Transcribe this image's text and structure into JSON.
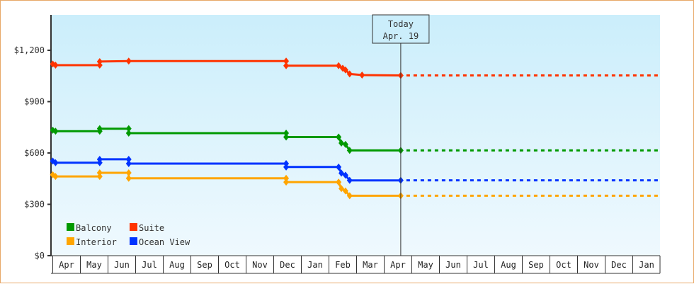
{
  "chart_data": {
    "type": "line",
    "title": "",
    "xlabel": "",
    "ylabel": "",
    "ylim": [
      0,
      1350
    ],
    "y_ticks": [
      "$0",
      "$300",
      "$600",
      "$900",
      "$1,200"
    ],
    "y_tick_values": [
      0,
      300,
      600,
      900,
      1200
    ],
    "x_ticks": [
      "Apr",
      "May",
      "Jun",
      "Jul",
      "Aug",
      "Sep",
      "Oct",
      "Nov",
      "Dec",
      "Jan",
      "Feb",
      "Mar",
      "Apr",
      "May",
      "Jun",
      "Jul",
      "Aug",
      "Sep",
      "Oct",
      "Nov",
      "Dec",
      "Jan"
    ],
    "grid": false,
    "legend_position": "lower-left inside",
    "today_marker": {
      "label_line1": "Today",
      "label_line2": "Apr. 19",
      "month_index": 12.6
    },
    "series": [
      {
        "name": "Suite",
        "color": "#ff3300",
        "points": [
          [
            0.0,
            1120
          ],
          [
            0.1,
            1113
          ],
          [
            1.7,
            1113
          ],
          [
            1.7,
            1134
          ],
          [
            2.75,
            1137
          ],
          [
            8.45,
            1137
          ],
          [
            8.45,
            1110
          ],
          [
            10.35,
            1110
          ],
          [
            10.5,
            1095
          ],
          [
            10.6,
            1085
          ],
          [
            10.75,
            1062
          ],
          [
            11.2,
            1055
          ],
          [
            12.6,
            1053
          ]
        ],
        "projection": 1053
      },
      {
        "name": "Balcony",
        "color": "#009900",
        "points": [
          [
            0.0,
            733
          ],
          [
            0.1,
            727
          ],
          [
            1.7,
            727
          ],
          [
            1.7,
            742
          ],
          [
            2.75,
            742
          ],
          [
            2.75,
            716
          ],
          [
            8.45,
            716
          ],
          [
            8.45,
            693
          ],
          [
            10.35,
            693
          ],
          [
            10.45,
            658
          ],
          [
            10.6,
            650
          ],
          [
            10.75,
            615
          ],
          [
            12.6,
            615
          ]
        ],
        "projection": 615
      },
      {
        "name": "Ocean View",
        "color": "#0033ff",
        "points": [
          [
            0.0,
            553
          ],
          [
            0.1,
            543
          ],
          [
            1.7,
            543
          ],
          [
            1.7,
            563
          ],
          [
            2.75,
            563
          ],
          [
            2.75,
            538
          ],
          [
            8.45,
            538
          ],
          [
            8.45,
            518
          ],
          [
            10.35,
            518
          ],
          [
            10.45,
            482
          ],
          [
            10.6,
            470
          ],
          [
            10.75,
            440
          ],
          [
            12.6,
            440
          ]
        ],
        "projection": 440
      },
      {
        "name": "Interior",
        "color": "#ffa500",
        "points": [
          [
            0.0,
            473
          ],
          [
            0.1,
            463
          ],
          [
            1.7,
            463
          ],
          [
            1.7,
            484
          ],
          [
            2.75,
            484
          ],
          [
            2.75,
            452
          ],
          [
            8.45,
            452
          ],
          [
            8.45,
            430
          ],
          [
            10.35,
            430
          ],
          [
            10.45,
            392
          ],
          [
            10.6,
            378
          ],
          [
            10.75,
            350
          ],
          [
            12.6,
            350
          ]
        ],
        "projection": 350
      }
    ],
    "legend": [
      {
        "name": "Balcony",
        "color": "#009900"
      },
      {
        "name": "Suite",
        "color": "#ff3300"
      },
      {
        "name": "Interior",
        "color": "#ffa500"
      },
      {
        "name": "Ocean View",
        "color": "#0033ff"
      }
    ]
  }
}
